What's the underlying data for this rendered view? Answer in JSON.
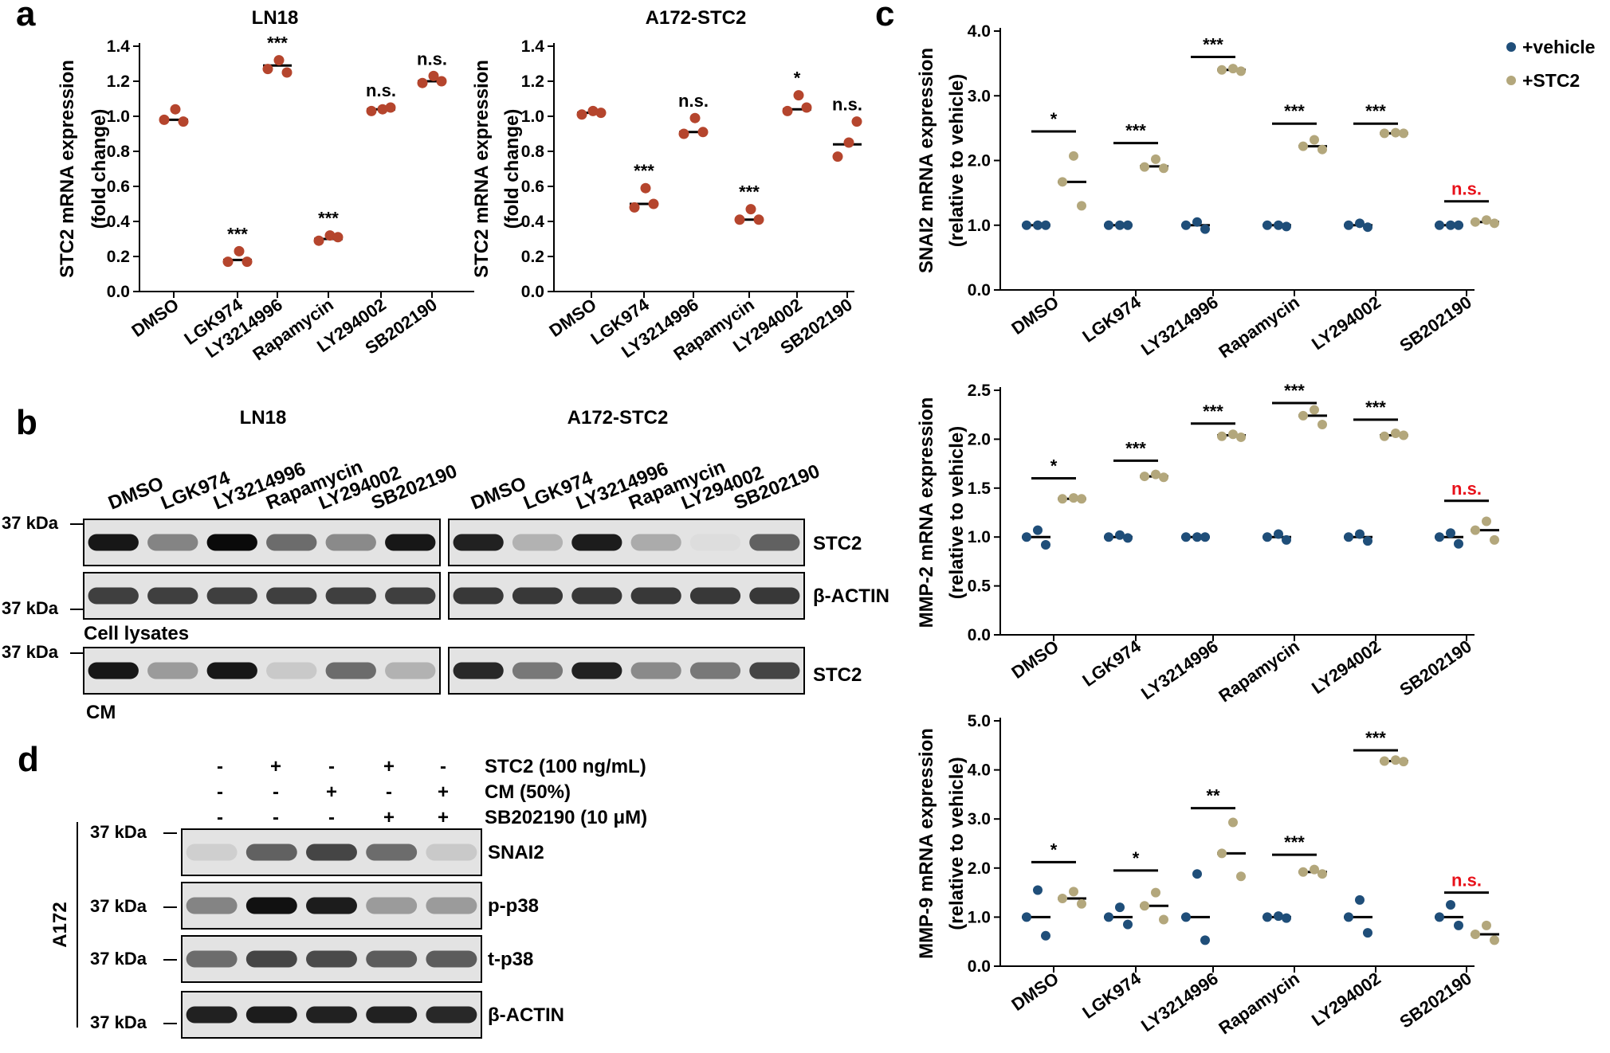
{
  "colors": {
    "panel_a": "#b5452d",
    "vehicle": "#1f4e79",
    "stc2": "#b3a77c",
    "ns_red": "#e8111a",
    "blot_bg": "#e3e3e3"
  },
  "panel_labels": [
    "a",
    "b",
    "c",
    "d"
  ],
  "drug_categories": [
    "DMSO",
    "LGK974",
    "LY3214996",
    "Rapamycin",
    "LY294002",
    "SB202190"
  ],
  "chart_data": [
    {
      "id": "a1",
      "type": "scatter",
      "title": "LN18",
      "ylabel_lines": [
        "STC2 mRNA expression",
        "(fold change)"
      ],
      "ylim": [
        0,
        1.4
      ],
      "ytick_labels": [
        "0.0",
        "0.2",
        "0.4",
        "0.6",
        "0.8",
        "1.0",
        "1.2",
        "1.4"
      ],
      "series": [
        {
          "name": "STC2",
          "values": [
            [
              0.98,
              1.04,
              0.97
            ],
            [
              0.17,
              0.23,
              0.17
            ],
            [
              1.27,
              1.32,
              1.25
            ],
            [
              0.29,
              0.32,
              0.31
            ],
            [
              1.03,
              1.04,
              1.05
            ],
            [
              1.19,
              1.23,
              1.2
            ]
          ],
          "means": [
            0.98,
            0.18,
            1.29,
            0.3,
            1.04,
            1.2
          ]
        }
      ],
      "significance": [
        "",
        "***",
        "***",
        "***",
        "n.s.",
        "n.s."
      ]
    },
    {
      "id": "a2",
      "type": "scatter",
      "title": "A172-STC2",
      "ylabel_lines": [
        "STC2 mRNA expression",
        "(fold change)"
      ],
      "ylim": [
        0,
        1.4
      ],
      "ytick_labels": [
        "0.0",
        "0.2",
        "0.4",
        "0.6",
        "0.8",
        "1.0",
        "1.2",
        "1.4"
      ],
      "series": [
        {
          "name": "STC2",
          "values": [
            [
              1.01,
              1.03,
              1.02
            ],
            [
              0.48,
              0.59,
              0.5
            ],
            [
              0.9,
              0.99,
              0.91
            ],
            [
              0.41,
              0.47,
              0.41
            ],
            [
              1.03,
              1.12,
              1.05
            ],
            [
              0.77,
              0.85,
              0.97
            ]
          ],
          "means": [
            1.02,
            0.5,
            0.91,
            0.41,
            1.04,
            0.84
          ]
        }
      ],
      "significance": [
        "",
        "***",
        "n.s.",
        "***",
        "*",
        "n.s."
      ]
    },
    {
      "id": "c1",
      "type": "scatter",
      "title": "",
      "ylabel_lines": [
        "SNAI2 mRNA expression",
        "(relative to vehicle)"
      ],
      "ylim": [
        0,
        4.0
      ],
      "ytick_labels": [
        "0.0",
        "1.0",
        "2.0",
        "3.0",
        "4.0"
      ],
      "series": [
        {
          "name": "+vehicle",
          "values": [
            [
              1.0,
              1.0,
              1.0
            ],
            [
              1.0,
              1.0,
              1.0
            ],
            [
              1.0,
              1.05,
              0.94
            ],
            [
              1.0,
              1.0,
              0.98
            ],
            [
              1.0,
              1.03,
              0.97
            ],
            [
              1.0,
              1.0,
              1.0
            ]
          ],
          "means": [
            1.0,
            1.0,
            1.0,
            1.0,
            1.0,
            1.0
          ]
        },
        {
          "name": "+STC2",
          "values": [
            [
              1.67,
              2.07,
              1.3
            ],
            [
              1.9,
              2.02,
              1.88
            ],
            [
              3.4,
              3.42,
              3.38
            ],
            [
              2.22,
              2.32,
              2.17
            ],
            [
              2.42,
              2.43,
              2.42
            ],
            [
              1.05,
              1.08,
              1.03
            ]
          ],
          "means": [
            1.67,
            1.91,
            3.4,
            2.22,
            2.42,
            1.05
          ]
        }
      ],
      "sig_bar": [
        2.45,
        2.27,
        3.6,
        2.57,
        2.57,
        1.37
      ],
      "significance": [
        "*",
        "***",
        "***",
        "***",
        "***",
        "n.s."
      ]
    },
    {
      "id": "c2",
      "type": "scatter",
      "title": "",
      "ylabel_lines": [
        "MMP-2 mRNA expression",
        "(relative to vehicle)"
      ],
      "ylim": [
        0,
        2.5
      ],
      "ytick_labels": [
        "0.0",
        "0.5",
        "1.0",
        "1.5",
        "2.0",
        "2.5"
      ],
      "series": [
        {
          "name": "+vehicle",
          "values": [
            [
              1.0,
              1.07,
              0.92
            ],
            [
              1.0,
              1.02,
              0.99
            ],
            [
              1.0,
              1.0,
              1.0
            ],
            [
              1.0,
              1.03,
              0.97
            ],
            [
              1.0,
              1.03,
              0.96
            ],
            [
              1.0,
              1.04,
              0.93
            ]
          ],
          "means": [
            1.0,
            1.0,
            1.0,
            1.0,
            1.0,
            1.0
          ]
        },
        {
          "name": "+STC2",
          "values": [
            [
              1.39,
              1.4,
              1.39
            ],
            [
              1.62,
              1.64,
              1.61
            ],
            [
              2.03,
              2.05,
              2.02
            ],
            [
              2.24,
              2.3,
              2.15
            ],
            [
              2.03,
              2.06,
              2.04
            ],
            [
              1.07,
              1.16,
              0.97
            ]
          ],
          "means": [
            1.39,
            1.62,
            2.04,
            2.24,
            2.04,
            1.07
          ]
        }
      ],
      "sig_bar": [
        1.6,
        1.78,
        2.16,
        2.37,
        2.2,
        1.37
      ],
      "significance": [
        "*",
        "***",
        "***",
        "***",
        "***",
        "n.s."
      ]
    },
    {
      "id": "c3",
      "type": "scatter",
      "title": "",
      "ylabel_lines": [
        "MMP-9 mRNA expression",
        "(relative to vehicle)"
      ],
      "ylim": [
        0,
        5.0
      ],
      "ytick_labels": [
        "0.0",
        "1.0",
        "2.0",
        "3.0",
        "4.0",
        "5.0"
      ],
      "series": [
        {
          "name": "+vehicle",
          "values": [
            [
              1.0,
              1.55,
              0.62
            ],
            [
              1.0,
              1.2,
              0.85
            ],
            [
              1.0,
              1.88,
              0.53
            ],
            [
              1.0,
              1.02,
              0.98
            ],
            [
              1.0,
              1.35,
              0.68
            ],
            [
              1.0,
              1.25,
              0.83
            ]
          ],
          "means": [
            1.0,
            1.0,
            1.0,
            1.0,
            1.0,
            1.0
          ]
        },
        {
          "name": "+STC2",
          "values": [
            [
              1.38,
              1.52,
              1.27
            ],
            [
              1.23,
              1.5,
              0.95
            ],
            [
              2.3,
              2.93,
              1.83
            ],
            [
              1.92,
              1.97,
              1.88
            ],
            [
              4.18,
              4.2,
              4.17
            ],
            [
              0.65,
              0.83,
              0.53
            ]
          ],
          "means": [
            1.38,
            1.23,
            2.3,
            1.92,
            4.18,
            0.65
          ]
        }
      ],
      "sig_bar": [
        2.12,
        1.95,
        3.22,
        2.27,
        4.4,
        1.5
      ],
      "significance": [
        "*",
        "*",
        "**",
        "***",
        "***",
        "n.s."
      ]
    }
  ],
  "legend": [
    "+vehicle",
    "+STC2"
  ],
  "panel_b": {
    "left_title": "LN18",
    "right_title": "A172-STC2",
    "lanes": [
      "DMSO",
      "LGK974",
      "LY3214996",
      "Rapamycin",
      "LY294002",
      "SB202190"
    ],
    "kda": "37 kDa",
    "rows": [
      "STC2",
      "β-ACTIN",
      "STC2"
    ],
    "cell_lysates": "Cell lysates",
    "cm": "CM",
    "bands": {
      "left": [
        [
          0.92,
          0.45,
          0.98,
          0.55,
          0.42,
          0.92
        ],
        [
          0.75,
          0.75,
          0.75,
          0.75,
          0.75,
          0.75
        ],
        [
          0.92,
          0.35,
          0.92,
          0.15,
          0.55,
          0.25
        ]
      ],
      "right": [
        [
          0.88,
          0.25,
          0.9,
          0.28,
          0.06,
          0.6
        ],
        [
          0.78,
          0.78,
          0.78,
          0.78,
          0.78,
          0.78
        ],
        [
          0.85,
          0.5,
          0.88,
          0.42,
          0.5,
          0.72
        ]
      ]
    }
  },
  "panel_d": {
    "conditions": [
      {
        "label": "STC2 (100 ng/mL)",
        "signs": [
          "-",
          "+",
          "-",
          "+",
          "-"
        ]
      },
      {
        "label": "CM (50%)",
        "signs": [
          "-",
          "-",
          "+",
          "-",
          "+"
        ]
      },
      {
        "label": "SB202190 (10 μM)",
        "signs": [
          "-",
          "-",
          "-",
          "+",
          "+"
        ]
      }
    ],
    "side_label": "A172",
    "kda": "37 kDa",
    "rows": [
      "SNAI2",
      "p-p38",
      "t-p38",
      "β-ACTIN"
    ],
    "bands": [
      [
        0.12,
        0.6,
        0.72,
        0.55,
        0.15
      ],
      [
        0.45,
        0.95,
        0.9,
        0.35,
        0.35
      ],
      [
        0.55,
        0.72,
        0.7,
        0.62,
        0.62
      ],
      [
        0.88,
        0.9,
        0.88,
        0.88,
        0.85
      ]
    ]
  }
}
